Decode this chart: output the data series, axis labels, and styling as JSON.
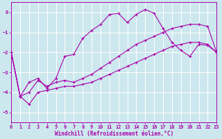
{
  "xlabel": "Windchill (Refroidissement éolien,°C)",
  "bg_color": "#cce8ee",
  "line_color": "#aa00aa",
  "grid_color": "#ffffff",
  "xlim": [
    0,
    23
  ],
  "ylim": [
    -5.5,
    0.5
  ],
  "yticks": [
    0,
    -1,
    -2,
    -3,
    -4,
    -5
  ],
  "xticks": [
    0,
    1,
    2,
    3,
    4,
    5,
    6,
    7,
    8,
    9,
    10,
    11,
    12,
    13,
    14,
    15,
    16,
    17,
    18,
    19,
    20,
    21,
    22,
    23
  ],
  "series": [
    {
      "x": [
        0,
        1,
        2,
        3,
        4,
        5,
        6,
        7,
        8,
        9,
        10,
        11,
        12,
        13,
        14,
        15,
        16,
        17,
        18,
        19,
        20,
        21,
        22,
        23
      ],
      "y": [
        -2.0,
        -4.2,
        -4.6,
        -4.0,
        -3.9,
        -3.8,
        -3.7,
        -3.7,
        -3.6,
        -3.5,
        -3.3,
        -3.1,
        -2.9,
        -2.7,
        -2.5,
        -2.3,
        -2.1,
        -1.9,
        -1.7,
        -1.6,
        -1.5,
        -1.5,
        -1.6,
        -2.0
      ]
    },
    {
      "x": [
        0,
        1,
        2,
        3,
        4,
        5,
        6,
        7,
        8,
        9,
        10,
        11,
        12,
        13,
        14,
        15,
        16,
        17,
        18,
        19,
        20,
        21,
        22,
        23
      ],
      "y": [
        -2.0,
        -4.2,
        -4.0,
        -3.4,
        -3.7,
        -3.5,
        -3.4,
        -3.5,
        -3.3,
        -3.1,
        -2.8,
        -2.5,
        -2.2,
        -1.9,
        -1.6,
        -1.4,
        -1.2,
        -1.0,
        -0.8,
        -0.7,
        -0.6,
        -0.6,
        -0.7,
        -2.0
      ]
    },
    {
      "x": [
        0,
        1,
        2,
        3,
        4,
        5,
        6,
        7,
        8,
        9,
        10,
        11,
        12,
        13,
        14,
        15,
        16,
        17,
        18,
        19,
        20,
        21,
        22,
        23
      ],
      "y": [
        -2.0,
        -4.2,
        -3.5,
        -3.3,
        -3.8,
        -3.3,
        -2.2,
        -2.1,
        -1.3,
        -0.9,
        -0.6,
        -0.1,
        -0.05,
        -0.5,
        -0.1,
        0.15,
        -0.05,
        -0.8,
        -1.5,
        -1.9,
        -2.2,
        -1.6,
        -1.65,
        -2.0
      ]
    }
  ]
}
